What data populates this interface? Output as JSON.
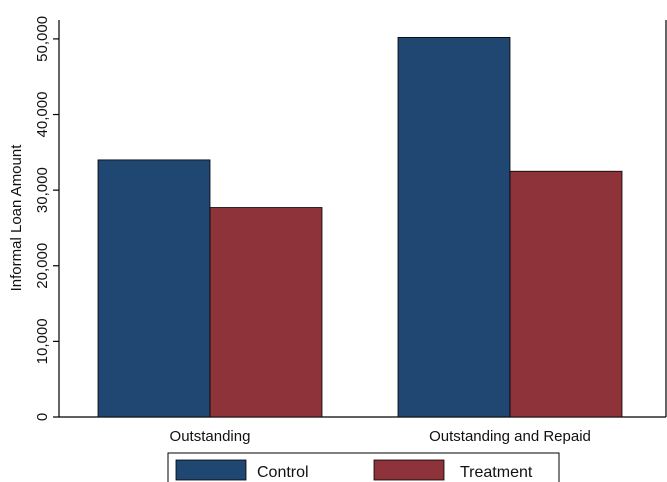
{
  "chart_data": {
    "type": "bar",
    "title": "",
    "xlabel": "",
    "ylabel": "Informal Loan Amount",
    "categories": [
      "Outstanding",
      "Outstanding and Repaid"
    ],
    "series": [
      {
        "name": "Control",
        "values": [
          34000,
          50200
        ],
        "color": "#1f4772"
      },
      {
        "name": "Treatment",
        "values": [
          27700,
          32500
        ],
        "color": "#8e333a"
      }
    ],
    "ylim": [
      0,
      52500
    ],
    "yticks": [
      0,
      10000,
      20000,
      30000,
      40000,
      50000
    ],
    "ytick_labels": [
      "0",
      "10,000",
      "20,000",
      "30,000",
      "40,000",
      "50,000"
    ],
    "grid": false,
    "legend_position": "bottom"
  }
}
